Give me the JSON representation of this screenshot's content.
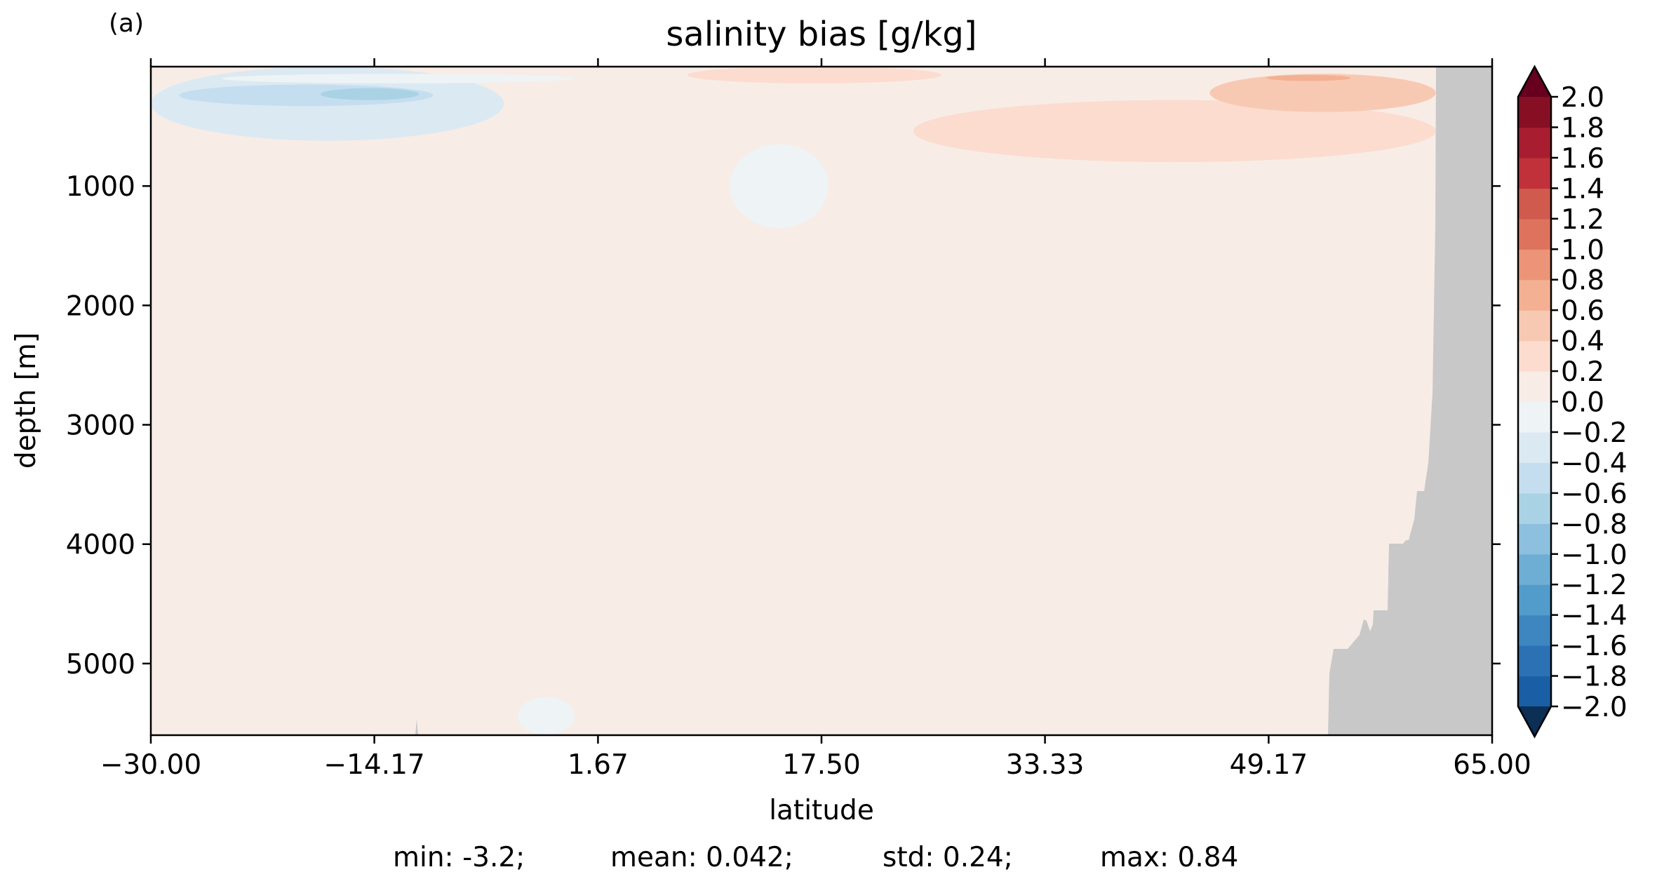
{
  "panel_label": "(a)",
  "chart_data": {
    "type": "heatmap",
    "title": "salinity bias [g/kg]",
    "xlabel": "latitude",
    "ylabel": "depth [m]",
    "xlim": [
      -30.0,
      65.0
    ],
    "ylim": [
      5600,
      0
    ],
    "x_ticks": [
      -30.0,
      -14.17,
      1.67,
      17.5,
      33.33,
      49.17,
      65.0
    ],
    "x_tick_labels": [
      "−30.00",
      "−14.17",
      "1.67",
      "17.50",
      "33.33",
      "49.17",
      "65.00"
    ],
    "y_ticks": [
      1000,
      2000,
      3000,
      4000,
      5000
    ],
    "y_tick_labels": [
      "1000",
      "2000",
      "3000",
      "4000",
      "5000"
    ],
    "colorbar": {
      "levels": [
        -2.0,
        -1.8,
        -1.6,
        -1.4,
        -1.2,
        -1.0,
        -0.8,
        -0.6,
        -0.4,
        -0.2,
        0.0,
        0.2,
        0.4,
        0.6,
        0.8,
        1.0,
        1.2,
        1.4,
        1.6,
        1.8,
        2.0
      ],
      "tick_labels": [
        "−2.0",
        "−1.8",
        "−1.6",
        "−1.4",
        "−1.2",
        "−1.0",
        "−0.8",
        "−0.6",
        "−0.4",
        "−0.2",
        "0.0",
        "0.2",
        "0.4",
        "0.6",
        "0.8",
        "1.0",
        "1.2",
        "1.4",
        "1.6",
        "1.8",
        "2.0"
      ],
      "colors": [
        "#0f4c8a",
        "#1a5fa6",
        "#2c71b4",
        "#3d86c0",
        "#529ccc",
        "#6eaed5",
        "#8cc0de",
        "#aad2e5",
        "#c4def0",
        "#dbe9f2",
        "#eef3f5",
        "#f8ece6",
        "#fbdcce",
        "#f8c9b2",
        "#f4b092",
        "#ec9477",
        "#dd735d",
        "#cf5a4d",
        "#c0313a",
        "#a81d30",
        "#870f24"
      ],
      "under_color": "#0b2f55",
      "over_color": "#67001f",
      "extend": "both"
    },
    "background_value": 0.05,
    "land_color": "#c8c8c8",
    "regions": [
      {
        "value": -0.3,
        "lat": [
          -30,
          -5
        ],
        "depth": [
          0,
          620
        ]
      },
      {
        "value": -0.5,
        "lat": [
          -28,
          -10
        ],
        "depth": [
          150,
          330
        ]
      },
      {
        "value": -0.7,
        "lat": [
          -18,
          -11
        ],
        "depth": [
          180,
          280
        ]
      },
      {
        "value": -0.1,
        "lat": [
          -25,
          0
        ],
        "depth": [
          60,
          140
        ]
      },
      {
        "value": -0.1,
        "lat": [
          11,
          18
        ],
        "depth": [
          650,
          1350
        ]
      },
      {
        "value": 0.3,
        "lat": [
          24,
          61
        ],
        "depth": [
          280,
          800
        ]
      },
      {
        "value": 0.3,
        "lat": [
          8,
          26
        ],
        "depth": [
          0,
          140
        ]
      },
      {
        "value": 0.5,
        "lat": [
          45,
          61
        ],
        "depth": [
          60,
          380
        ]
      },
      {
        "value": 0.7,
        "lat": [
          49,
          55
        ],
        "depth": [
          70,
          120
        ]
      },
      {
        "value": -0.1,
        "lat": [
          -4,
          0
        ],
        "depth": [
          5280,
          5600
        ]
      }
    ],
    "stats": {
      "min": "min: -3.2;",
      "mean": "mean: 0.042;",
      "std": "std: 0.24;",
      "max": "max: 0.84"
    }
  }
}
